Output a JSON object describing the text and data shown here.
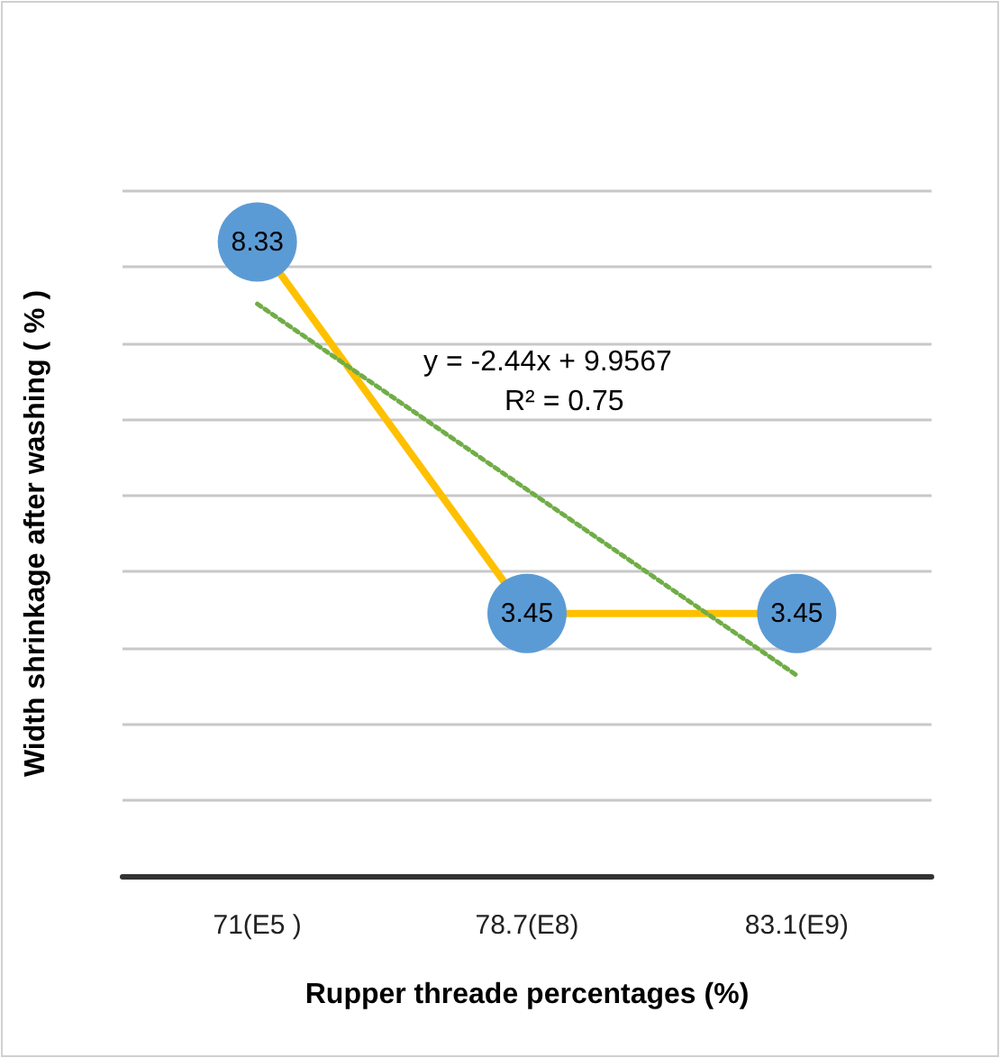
{
  "chart_data": {
    "type": "line",
    "xlabel": "Rupper threade percentages (%)",
    "ylabel": "Width shrinkage after washing ( % )",
    "categories": [
      "71(E5 )",
      "78.7(E8)",
      "83.1(E9)"
    ],
    "series": [
      {
        "color": "#ffc000",
        "values": [
          8.33,
          3.45,
          3.45
        ],
        "value_labels": [
          "8.33",
          "3.45",
          "3.45"
        ],
        "marker": "circle",
        "line_style": "solid"
      },
      {
        "color": "#70ad47",
        "values": [
          7.5167,
          5.0767,
          2.6367
        ],
        "marker": "none",
        "line_style": "dotted"
      }
    ],
    "ylim": [
      0,
      9
    ],
    "yticks": [
      {
        "value": 0,
        "label": null
      },
      {
        "value": 1,
        "label": null
      },
      {
        "value": 2,
        "label": null
      },
      {
        "value": 3,
        "label": null
      },
      {
        "value": 4,
        "label": null
      },
      {
        "value": 5,
        "label": null
      },
      {
        "value": 6,
        "label": null
      },
      {
        "value": 7,
        "label": null
      },
      {
        "value": 8,
        "label": null
      },
      {
        "value": 9,
        "label": null
      }
    ],
    "tick_labels": "x",
    "grid": "y",
    "annotations": [
      "y = -2.44x + 9.9567",
      "R² = 0.75"
    ]
  }
}
